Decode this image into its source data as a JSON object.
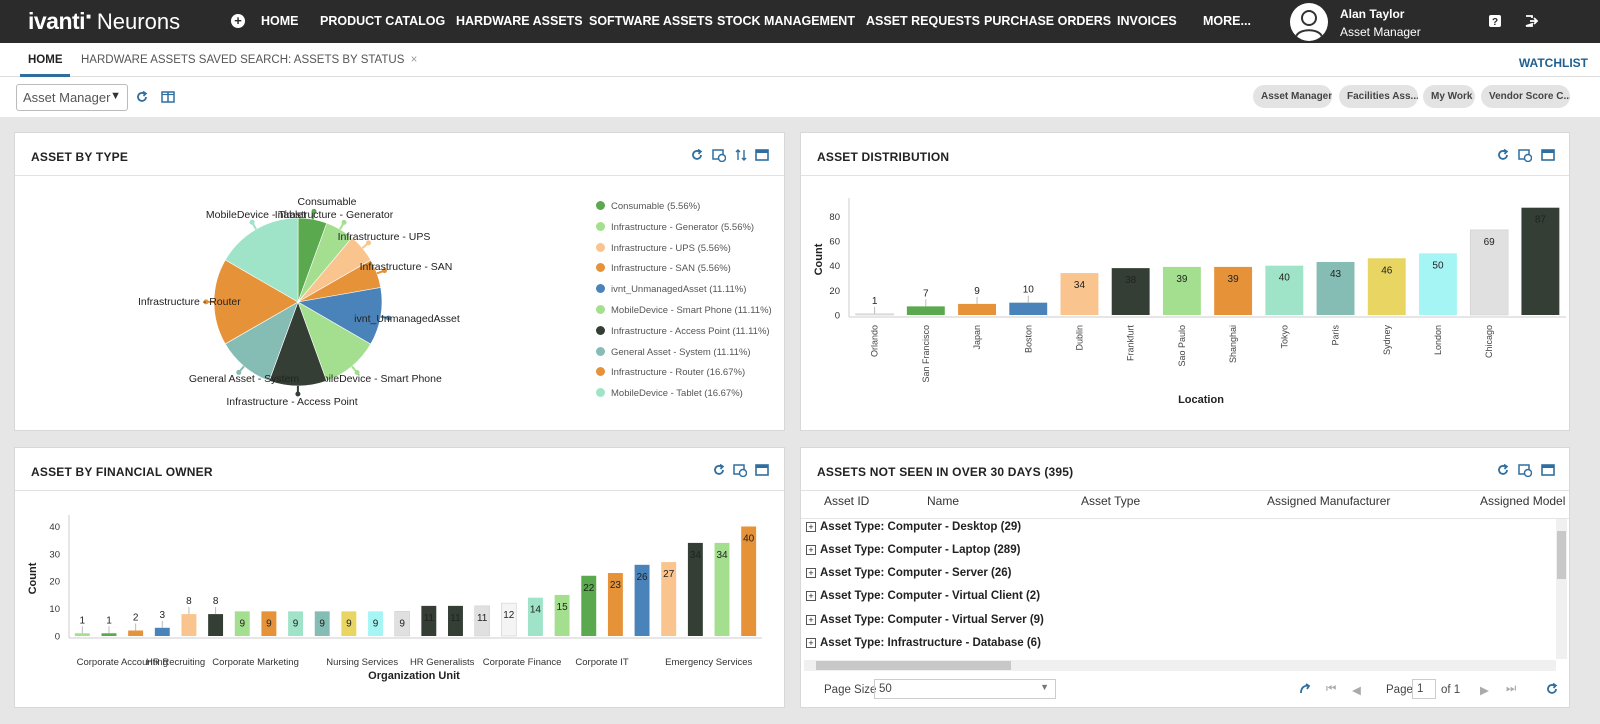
{
  "header": {
    "logo_brand": "ivanti",
    "logo_product": "Neurons",
    "nav": [
      {
        "label": "HOME"
      },
      {
        "label": "PRODUCT CATALOG"
      },
      {
        "label": "HARDWARE ASSETS"
      },
      {
        "label": "SOFTWARE ASSETS"
      },
      {
        "label": "STOCK MANAGEMENT"
      },
      {
        "label": "ASSET REQUESTS"
      },
      {
        "label": "PURCHASE ORDERS"
      },
      {
        "label": "INVOICES"
      },
      {
        "label": "MORE..."
      }
    ],
    "user_name": "Alan Taylor",
    "user_role": "Asset Manager",
    "icons": [
      "add-icon",
      "help-icon",
      "logout-icon"
    ]
  },
  "tabs": [
    {
      "label": "HOME",
      "active": true
    },
    {
      "label": "HARDWARE ASSETS SAVED SEARCH: ASSETS BY STATUS",
      "closable": true
    }
  ],
  "watchlist_label": "WATCHLIST",
  "toolbar": {
    "role_select": "Asset Manager",
    "pills": [
      "Asset Manager",
      "Facilities Ass...",
      "My Work",
      "Vendor Score C..."
    ]
  },
  "colors": {
    "green": "#5aa94e",
    "lightgreen": "#a3df8e",
    "peach": "#f9c48e",
    "orange": "#e69239",
    "blue": "#4a83b9",
    "darkgreen": "#343e34",
    "teal": "#85bcb4",
    "mint": "#9fe3c8",
    "yellow": "#e8d562",
    "cyan": "#a6f5f5",
    "lightgray": "#e0e0e0"
  },
  "panels": {
    "asset_by_type": {
      "title": "ASSET BY TYPE",
      "chart_data": {
        "type": "pie",
        "slices": [
          {
            "label": "Consumable",
            "legend": "Consumable (5.56%)",
            "percent": 5.56,
            "color": "#5aa94e"
          },
          {
            "label": "Infrastructure - Generator",
            "legend": "Infrastructure - Generator (5.56%)",
            "percent": 5.56,
            "color": "#a3df8e"
          },
          {
            "label": "Infrastructure - UPS",
            "legend": "Infrastructure - UPS (5.56%)",
            "percent": 5.56,
            "color": "#f9c48e"
          },
          {
            "label": "Infrastructure - SAN",
            "legend": "Infrastructure - SAN (5.56%)",
            "percent": 5.56,
            "color": "#e69239"
          },
          {
            "label": "ivnt_UnmanagedAsset",
            "legend": "ivnt_UnmanagedAsset (11.11%)",
            "percent": 11.11,
            "color": "#4a83b9"
          },
          {
            "label": "MobileDevice - Smart Phone",
            "legend": "MobileDevice - Smart Phone (11.11%)",
            "percent": 11.11,
            "color": "#a3df8e"
          },
          {
            "label": "Infrastructure - Access Point",
            "legend": "Infrastructure - Access Point (11.11%)",
            "percent": 11.11,
            "color": "#343e34"
          },
          {
            "label": "General Asset - System",
            "legend": "General Asset - System (11.11%)",
            "percent": 11.11,
            "color": "#85bcb4"
          },
          {
            "label": "Infrastructure - Router",
            "legend": "Infrastructure - Router (16.67%)",
            "percent": 16.67,
            "color": "#e69239"
          },
          {
            "label": "MobileDevice - Tablet",
            "legend": "MobileDevice - Tablet (16.67%)",
            "percent": 16.67,
            "color": "#9fe3c8"
          }
        ]
      }
    },
    "asset_distribution": {
      "title": "ASSET DISTRIBUTION",
      "chart_data": {
        "type": "bar",
        "xlabel": "Location",
        "ylabel": "Count",
        "ylim": [
          0,
          90
        ],
        "yticks": [
          0,
          20,
          40,
          60,
          80
        ],
        "categories": [
          "Orlando",
          "San Francisco",
          "Japan",
          "Boston",
          "Dublin",
          "Frankfurt",
          "Sao Paulo",
          "Shanghai",
          "Tokyo",
          "Paris",
          "Sydney",
          "London",
          "Chicago",
          ""
        ],
        "values": [
          1,
          7,
          9,
          10,
          34,
          38,
          39,
          39,
          40,
          43,
          46,
          50,
          69,
          87
        ],
        "colors": [
          "#e0e0e0",
          "#5aa94e",
          "#e69239",
          "#4a83b9",
          "#f9c48e",
          "#343e34",
          "#a3df8e",
          "#e69239",
          "#9fe3c8",
          "#85bcb4",
          "#e8d562",
          "#a6f5f5",
          "#e0e0e0",
          "#343e34"
        ]
      }
    },
    "asset_by_financial_owner": {
      "title": "ASSET BY FINANCIAL OWNER",
      "chart_data": {
        "type": "bar",
        "xlabel": "Organization Unit",
        "ylabel": "Count",
        "ylim": [
          0,
          42
        ],
        "yticks": [
          0,
          10,
          20,
          30,
          40
        ],
        "values": [
          1,
          1,
          2,
          3,
          8,
          8,
          9,
          9,
          9,
          9,
          9,
          9,
          9,
          11,
          11,
          11,
          12,
          14,
          15,
          22,
          23,
          26,
          27,
          34,
          34,
          40
        ],
        "colors": [
          "#a3df8e",
          "#5aa94e",
          "#e69239",
          "#4a83b9",
          "#f9c48e",
          "#343e34",
          "#a3df8e",
          "#e69239",
          "#9fe3c8",
          "#85bcb4",
          "#e8d562",
          "#a6f5f5",
          "#e0e0e0",
          "#343e34",
          "#343e34",
          "#e0e0e0",
          "#f4f4f4",
          "#9fe3c8",
          "#a3df8e",
          "#5aa94e",
          "#e69239",
          "#4a83b9",
          "#f9c48e",
          "#343e34",
          "#a3df8e",
          "#e69239"
        ],
        "tick_labels": [
          {
            "label": "Corporate Accounting",
            "index": 1.5
          },
          {
            "label": "HR Recruiting",
            "index": 3.5
          },
          {
            "label": "Corporate Marketing",
            "index": 6.5
          },
          {
            "label": "Nursing Services",
            "index": 10.5
          },
          {
            "label": "HR Generalists",
            "index": 13.5
          },
          {
            "label": "Corporate Finance",
            "index": 16.5
          },
          {
            "label": "Corporate IT",
            "index": 19.5
          },
          {
            "label": "Emergency Services",
            "index": 23.5
          }
        ]
      }
    },
    "assets_not_seen": {
      "title": "ASSETS NOT SEEN IN OVER 30 DAYS (395)",
      "columns": [
        "Asset ID",
        "Name",
        "Asset Type",
        "Assigned Manufacturer",
        "Assigned Model"
      ],
      "groups": [
        "Asset Type: Computer - Desktop (29)",
        "Asset Type: Computer - Laptop (289)",
        "Asset Type: Computer - Server (26)",
        "Asset Type: Computer - Virtual Client (2)",
        "Asset Type: Computer - Virtual Server (9)",
        "Asset Type: Infrastructure - Database (6)"
      ],
      "page_size_label": "Page Size",
      "page_size": "50",
      "page_label": "Page",
      "page": "1",
      "of_pages": "of 1"
    }
  }
}
